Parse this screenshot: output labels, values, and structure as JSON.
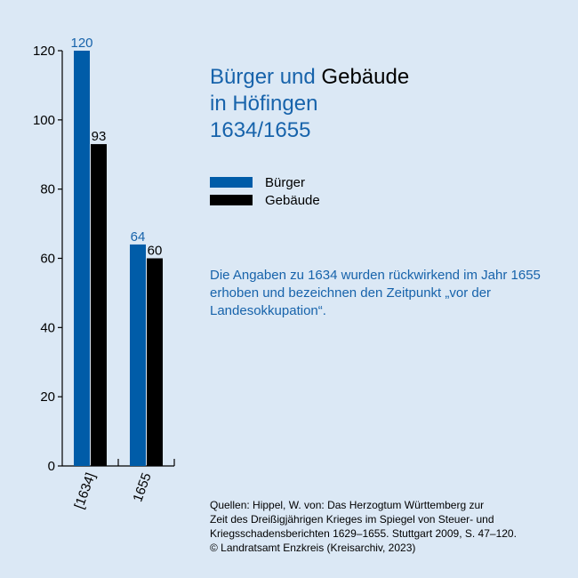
{
  "title": {
    "part1": "Bürger und",
    "part2": "Gebäude",
    "line2": "in Höfingen",
    "line3": "1634/1655"
  },
  "legend": [
    {
      "label": "Bürger",
      "color": "#005ca8"
    },
    {
      "label": "Gebäude",
      "color": "#000000"
    }
  ],
  "note": "Die Angaben zu 1634 wurden rückwirkend im Jahr 1655 erhoben und bezeichnen den Zeitpunkt „vor der Landesokkupation“.",
  "sources": [
    "Quellen: Hippel, W. von: Das Herzogtum Württemberg zur",
    "Zeit des Dreißigjährigen Krieges im Spiegel von Steuer- und",
    "Kriegsschadensberichten 1629–1655. Stuttgart 2009, S. 47–120.",
    "© Landratsamt Enzkreis (Kreisarchiv, 2023)"
  ],
  "chart_data": {
    "type": "bar",
    "categories": [
      "[1634]",
      "1655"
    ],
    "series": [
      {
        "name": "Bürger",
        "values": [
          120,
          64
        ],
        "color": "#005ca8",
        "label_color": "#1763ab"
      },
      {
        "name": "Gebäude",
        "values": [
          93,
          60
        ],
        "color": "#000000",
        "label_color": "#000000"
      }
    ],
    "ylim": [
      0,
      120
    ],
    "yticks": [
      0,
      20,
      40,
      60,
      80,
      100,
      120
    ],
    "grid": false,
    "legend_position": "right"
  }
}
